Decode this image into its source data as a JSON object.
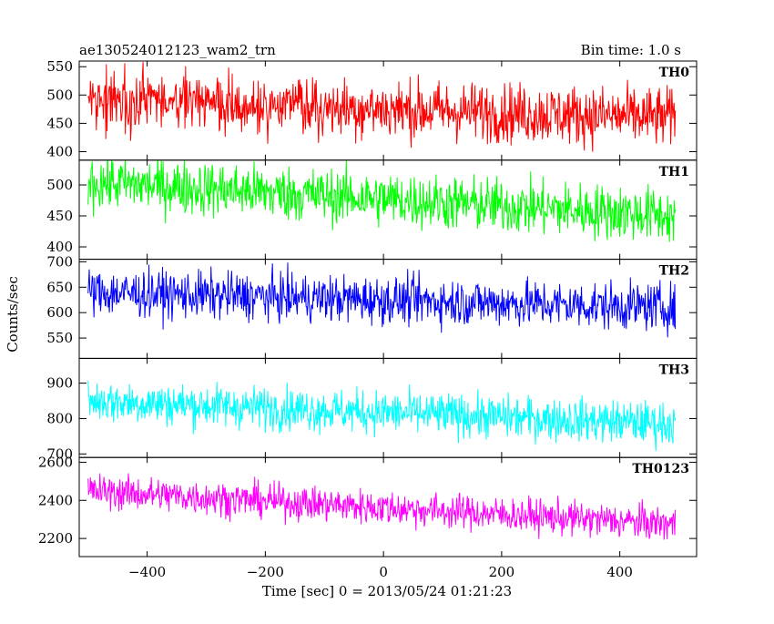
{
  "header": {
    "title": "ae130524012123_wam2_trn",
    "bin_time": "Bin time: 1.0 s"
  },
  "axes": {
    "xlabel": "Time [sec] 0 = 2013/05/24 01:21:23",
    "ylabel": "Counts/sec"
  },
  "chart_data": {
    "type": "line",
    "xlim": [
      -515,
      530
    ],
    "x_range": [
      -500,
      494
    ],
    "x_step": 1,
    "x_ticks": [
      -400,
      -200,
      0,
      200,
      400
    ],
    "grid": false,
    "legend": "none",
    "panels": [
      {
        "name": "TH0",
        "color": "#ff0000",
        "ylim": [
          385,
          560
        ],
        "y_ticks": [
          400,
          450,
          500,
          550
        ],
        "start_mean": 490,
        "end_mean": 460,
        "spread": 26
      },
      {
        "name": "TH1",
        "color": "#00ff00",
        "ylim": [
          380,
          540
        ],
        "y_ticks": [
          400,
          450,
          500
        ],
        "start_mean": 505,
        "end_mean": 450,
        "spread": 22
      },
      {
        "name": "TH2",
        "color": "#0000ff",
        "ylim": [
          510,
          705
        ],
        "y_ticks": [
          550,
          600,
          650,
          700
        ],
        "start_mean": 640,
        "end_mean": 610,
        "spread": 23
      },
      {
        "name": "TH3",
        "color": "#00ffff",
        "ylim": [
          690,
          970
        ],
        "y_ticks": [
          700,
          800,
          900
        ],
        "start_mean": 850,
        "end_mean": 785,
        "spread": 30
      },
      {
        "name": "TH0123",
        "color": "#ff00ff",
        "ylim": [
          2105,
          2625
        ],
        "y_ticks": [
          2200,
          2400,
          2600
        ],
        "start_mean": 2450,
        "end_mean": 2275,
        "spread": 45
      }
    ]
  }
}
